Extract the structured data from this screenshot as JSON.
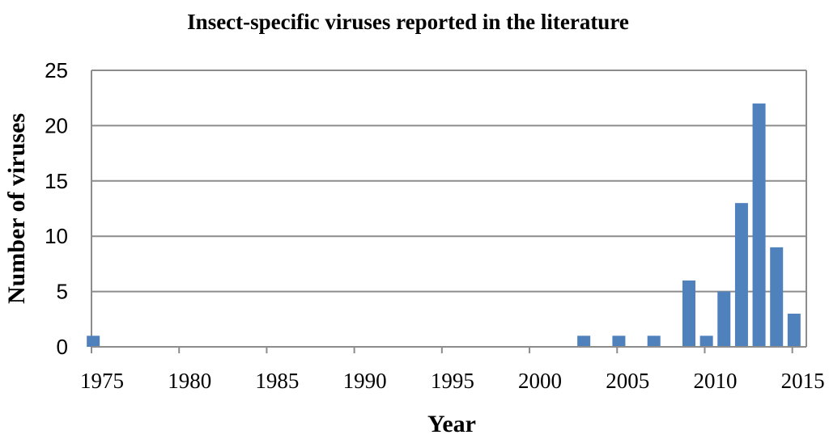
{
  "chart_data": {
    "type": "bar",
    "title": "Insect-specific viruses reported in the literature",
    "xlabel": "Year",
    "ylabel": "Number of viruses",
    "xlim": [
      1975,
      2015
    ],
    "ylim": [
      0,
      25
    ],
    "xticks": [
      "1975",
      "1980",
      "1985",
      "1990",
      "1995",
      "2000",
      "2005",
      "2010",
      "2015"
    ],
    "yticks": [
      "0",
      "5",
      "10",
      "15",
      "20",
      "25"
    ],
    "grid": "horizontal",
    "legend": "none",
    "bar_color": "#4f81bd",
    "x": [
      1975,
      2003,
      2005,
      2007,
      2009,
      2010,
      2011,
      2012,
      2013,
      2014,
      2015
    ],
    "values": [
      1,
      1,
      1,
      1,
      6,
      1,
      5,
      13,
      22,
      9,
      3
    ]
  }
}
